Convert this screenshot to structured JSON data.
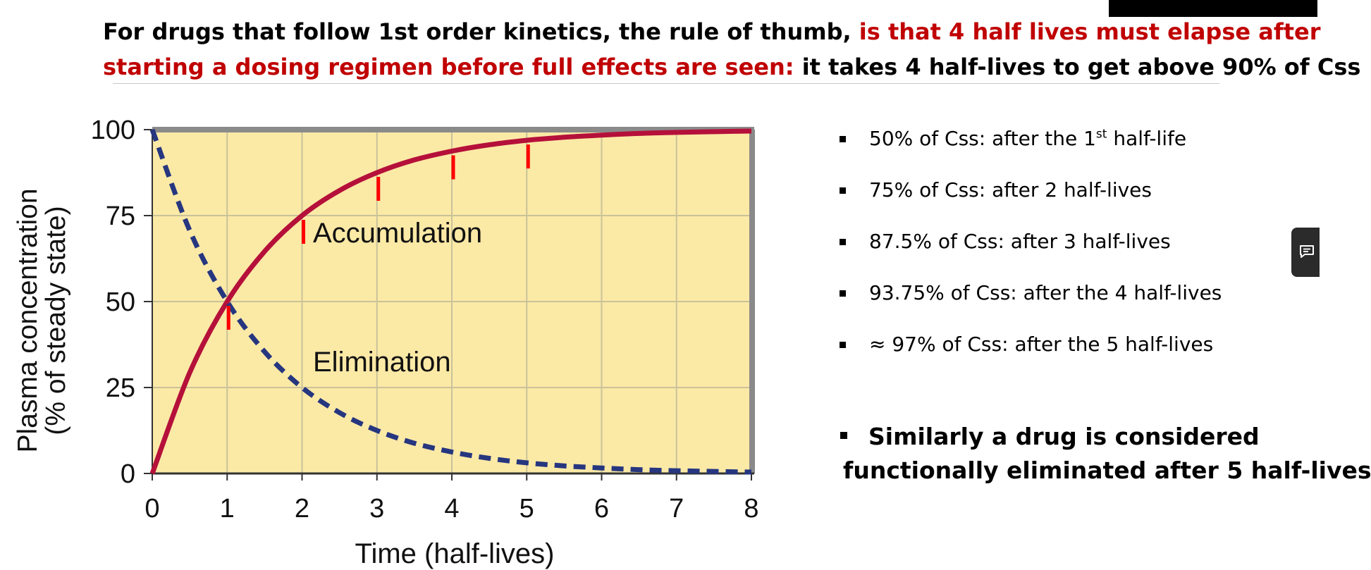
{
  "header": {
    "line1_black": "For drugs that follow 1st order kinetics, the rule of thumb, ",
    "line1_red": "is that 4 half lives must elapse after",
    "line2_red": "starting a dosing regimen before full effects are seen:",
    "line2_black": " it takes 4 half-lives to get above 90% of Css"
  },
  "bullets": [
    {
      "pre": "50% of Css:  after the 1",
      "sup": "st",
      "post": " half-life"
    },
    {
      "pre": "75%  of Css: after 2 half-lives",
      "sup": "",
      "post": ""
    },
    {
      "pre": "87.5% of Css: after 3 half-lives",
      "sup": "",
      "post": ""
    },
    {
      "pre": "93.75% of Css: after the 4 half-lives",
      "sup": "",
      "post": ""
    },
    {
      "pre": "≈ 97%  of Css: after the 5 half-lives",
      "sup": "",
      "post": ""
    }
  ],
  "summary": {
    "line1": "Similarly a drug is considered",
    "line2": "functionally eliminated after 5 half-lives"
  },
  "icons": {
    "bullet": "square-bullet-icon",
    "comment": "comment-icon"
  },
  "colors": {
    "plot_bg": "#fbe9a6",
    "grid": "#c9c29a",
    "frame": "#8a8a8a",
    "accumulation": "#b5103a",
    "elimination": "#26367f",
    "marker": "#ff0000",
    "title_red": "#c00000"
  },
  "chart_data": {
    "type": "line",
    "xlabel": "Time (half-lives)",
    "ylabel_line1": "Plasma concentration",
    "ylabel_line2": "(% of steady state)",
    "x_ticks": [
      "0",
      "1",
      "2",
      "3",
      "4",
      "5",
      "6",
      "7",
      "8"
    ],
    "y_ticks": [
      "0",
      "25",
      "50",
      "75",
      "100"
    ],
    "xlim": [
      0,
      8
    ],
    "ylim": [
      0,
      100
    ],
    "grid": true,
    "x": [
      0,
      0.5,
      1,
      1.5,
      2,
      2.5,
      3,
      3.5,
      4,
      4.5,
      5,
      5.5,
      6,
      6.5,
      7,
      7.5,
      8
    ],
    "series": [
      {
        "name": "Accumulation",
        "style": "solid",
        "values": [
          0,
          29.3,
          50,
          64.6,
          75,
          82.3,
          87.5,
          91.2,
          93.75,
          95.6,
          96.9,
          97.8,
          98.4,
          98.9,
          99.2,
          99.4,
          99.6
        ]
      },
      {
        "name": "Elimination",
        "style": "dashed",
        "values": [
          100,
          70.7,
          50,
          35.4,
          25,
          17.7,
          12.5,
          8.8,
          6.25,
          4.4,
          3.1,
          2.2,
          1.6,
          1.1,
          0.8,
          0.6,
          0.4
        ]
      }
    ],
    "markers": [
      {
        "x": 1,
        "y": 50
      },
      {
        "x": 2,
        "y": 75
      },
      {
        "x": 3,
        "y": 87.5
      },
      {
        "x": 4,
        "y": 93.75
      },
      {
        "x": 5,
        "y": 96.9
      }
    ]
  }
}
